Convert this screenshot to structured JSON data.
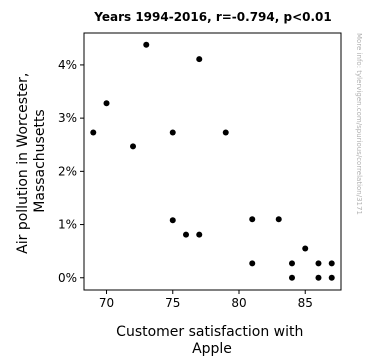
{
  "chart_data": {
    "type": "scatter",
    "title": "Years 1994-2016, r=-0.794, p<0.01",
    "xlabel_lines": [
      "Customer satisfaction with",
      "Apple"
    ],
    "ylabel_lines": [
      "Air pollution in Worcester,",
      "Massachusetts"
    ],
    "side_note": "More info: tylervigen.com/spurious/correlation/3171",
    "xlim": [
      68.3,
      87.7
    ],
    "ylim": [
      -0.23,
      4.6
    ],
    "x_ticks": [
      70,
      75,
      80,
      85
    ],
    "x_tick_labels": [
      "70",
      "75",
      "80",
      "85"
    ],
    "y_ticks": [
      0,
      1,
      2,
      3,
      4
    ],
    "y_tick_labels": [
      "0%",
      "1%",
      "2%",
      "3%",
      "4%"
    ],
    "grid": false,
    "points": [
      {
        "x": 69,
        "y": 2.73
      },
      {
        "x": 70,
        "y": 3.28
      },
      {
        "x": 72,
        "y": 2.47
      },
      {
        "x": 73,
        "y": 4.38
      },
      {
        "x": 75,
        "y": 2.73
      },
      {
        "x": 75,
        "y": 1.08
      },
      {
        "x": 76,
        "y": 0.81
      },
      {
        "x": 77,
        "y": 4.11
      },
      {
        "x": 77,
        "y": 0.81
      },
      {
        "x": 79,
        "y": 2.73
      },
      {
        "x": 81,
        "y": 1.1
      },
      {
        "x": 81,
        "y": 0.27
      },
      {
        "x": 83,
        "y": 1.1
      },
      {
        "x": 84,
        "y": 0.27
      },
      {
        "x": 84,
        "y": 0.0
      },
      {
        "x": 85,
        "y": 0.55
      },
      {
        "x": 86,
        "y": 0.27
      },
      {
        "x": 86,
        "y": 0.0
      },
      {
        "x": 87,
        "y": 0.27
      },
      {
        "x": 87,
        "y": 0.0
      }
    ]
  }
}
